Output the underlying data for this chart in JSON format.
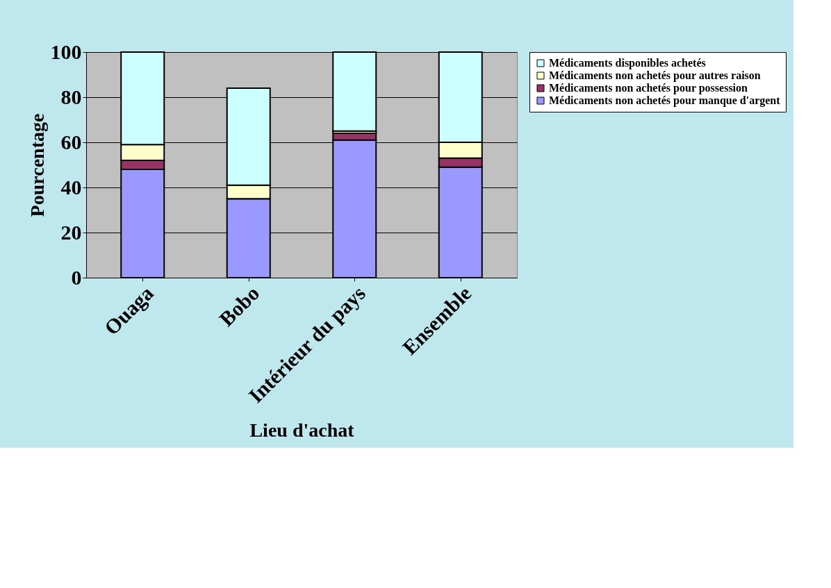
{
  "chart_data": {
    "type": "bar",
    "stacked": true,
    "xlabel": "Lieu d'achat",
    "ylabel": "Pourcentage",
    "categories": [
      "Ouaga",
      "Bobo",
      "Intérieur du pays",
      "Ensemble"
    ],
    "series": [
      {
        "name": "Médicaments non achetés pour manque d'argent",
        "color": "#9999ff",
        "values": [
          48,
          35,
          61,
          49
        ]
      },
      {
        "name": "Médicaments non achetés pour  possession",
        "color": "#993366",
        "values": [
          4,
          0,
          3,
          4
        ]
      },
      {
        "name": "Médicaments non achetés pour autres raison",
        "color": "#ffffcc",
        "values": [
          7,
          6,
          1,
          7
        ]
      },
      {
        "name": "Médicaments  disponibles achetés",
        "color": "#ccffff",
        "values": [
          41,
          43,
          35,
          40
        ]
      }
    ],
    "ylim": [
      0,
      100
    ],
    "yticks": [
      0,
      20,
      40,
      60,
      80,
      100
    ],
    "grid": "y",
    "legend": "right"
  }
}
